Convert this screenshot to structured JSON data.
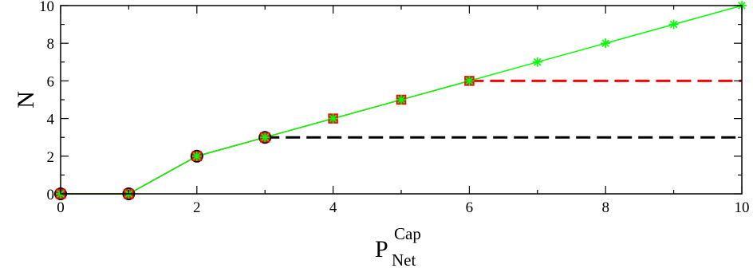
{
  "chart_data": {
    "type": "line",
    "title": "",
    "xlabel": {
      "main": "P",
      "superscript": "Cap",
      "subscript": "Net"
    },
    "ylabel": "N",
    "xlim": [
      0,
      10
    ],
    "ylim": [
      0,
      10
    ],
    "x_ticks": [
      0,
      2,
      4,
      6,
      8,
      10
    ],
    "y_ticks": [
      0,
      2,
      4,
      6,
      8,
      10
    ],
    "grid": false,
    "legend": "none",
    "series": [
      {
        "color": "#000000",
        "marker": "filled-circle",
        "points": [
          [
            0,
            0
          ],
          [
            1,
            0
          ],
          [
            2,
            2
          ],
          [
            3,
            3
          ]
        ],
        "dashed_continuation": {
          "from_x": 3,
          "to_x": 10,
          "y": 3
        }
      },
      {
        "color": "#ff0000",
        "marker": "square",
        "points": [
          [
            0,
            0
          ],
          [
            1,
            0
          ],
          [
            2,
            2
          ],
          [
            3,
            3
          ],
          [
            4,
            4
          ],
          [
            5,
            5
          ],
          [
            6,
            6
          ]
        ],
        "dashed_continuation": {
          "from_x": 6,
          "to_x": 10,
          "y": 6
        }
      },
      {
        "color": "#00ff00",
        "marker": "star",
        "points": [
          [
            0,
            0
          ],
          [
            1,
            0
          ],
          [
            2,
            2
          ],
          [
            3,
            3
          ],
          [
            4,
            4
          ],
          [
            5,
            5
          ],
          [
            6,
            6
          ],
          [
            7,
            7
          ],
          [
            8,
            8
          ],
          [
            9,
            9
          ],
          [
            10,
            10
          ]
        ]
      }
    ]
  }
}
